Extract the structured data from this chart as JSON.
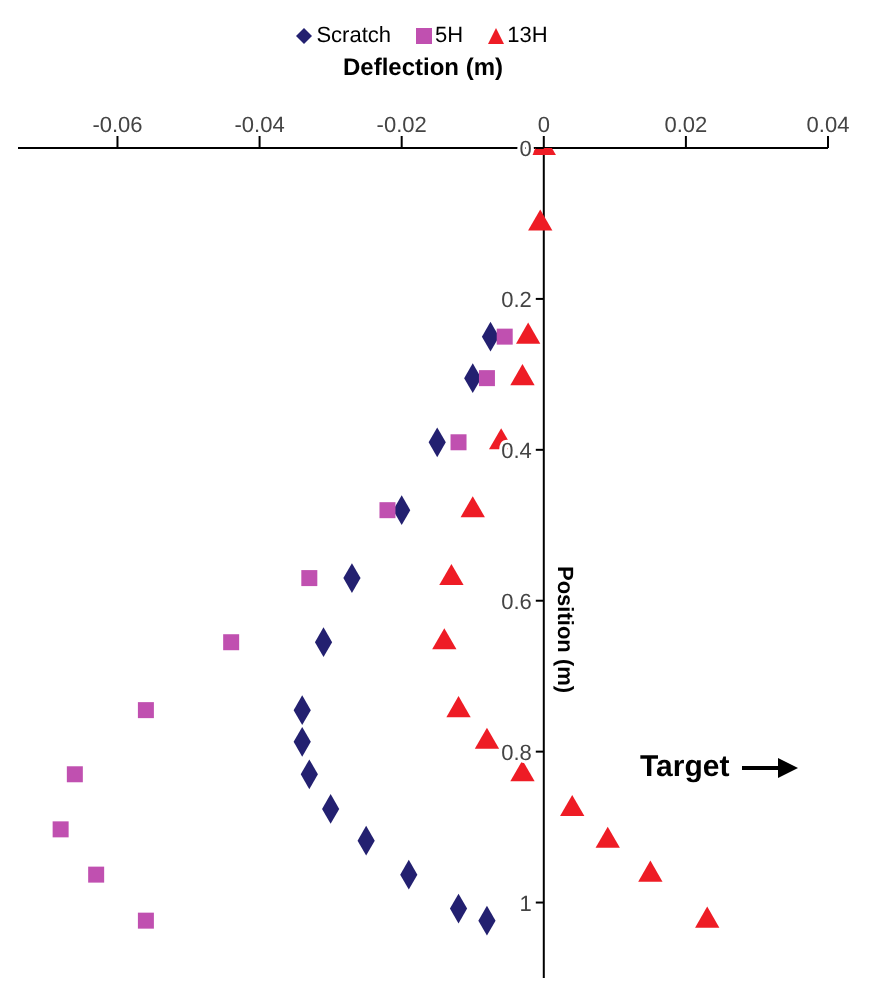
{
  "chart_data": {
    "type": "scatter",
    "xlabel": "Deflection (m)",
    "ylabel": "Position (m)",
    "xlim": [
      -0.074,
      0.04
    ],
    "xticks": [
      -0.06,
      -0.04,
      -0.02,
      0,
      0.02,
      0.04
    ],
    "ylim": [
      1.1,
      0
    ],
    "yticks": [
      0,
      0.2,
      0.4,
      0.6,
      0.8,
      1
    ],
    "legend": "top",
    "grid": false,
    "annotations": [
      "Target"
    ],
    "series": [
      {
        "name": "Scratch",
        "color": "#232070",
        "marker": "diamond",
        "x": [
          -0.0075,
          -0.01,
          -0.015,
          -0.02,
          -0.027,
          -0.031,
          -0.034,
          -0.034,
          -0.033,
          -0.03,
          -0.025,
          -0.019,
          -0.012,
          -0.008
        ],
        "values": [
          0.25,
          0.305,
          0.39,
          0.48,
          0.57,
          0.655,
          0.745,
          0.787,
          0.83,
          0.876,
          0.918,
          0.963,
          1.008,
          1.024
        ]
      },
      {
        "name": "5H",
        "color": "#c050b0",
        "marker": "square",
        "x": [
          -0.0055,
          -0.008,
          -0.012,
          -0.022,
          -0.033,
          -0.044,
          -0.056,
          -0.066,
          -0.068,
          -0.063,
          -0.056
        ],
        "values": [
          0.25,
          0.305,
          0.39,
          0.48,
          0.57,
          0.655,
          0.745,
          0.83,
          0.903,
          0.963,
          1.024
        ]
      },
      {
        "name": "13H",
        "color": "#ee1c25",
        "marker": "triangle",
        "x": [
          0,
          -0.0005,
          -0.0022,
          -0.003,
          -0.006,
          -0.01,
          -0.013,
          -0.014,
          -0.012,
          -0.008,
          -0.003,
          0.004,
          0.009,
          0.015,
          0.023
        ],
        "values": [
          0,
          0.1,
          0.25,
          0.305,
          0.39,
          0.48,
          0.57,
          0.655,
          0.745,
          0.787,
          0.83,
          0.876,
          0.918,
          0.963,
          1.024
        ]
      }
    ]
  }
}
